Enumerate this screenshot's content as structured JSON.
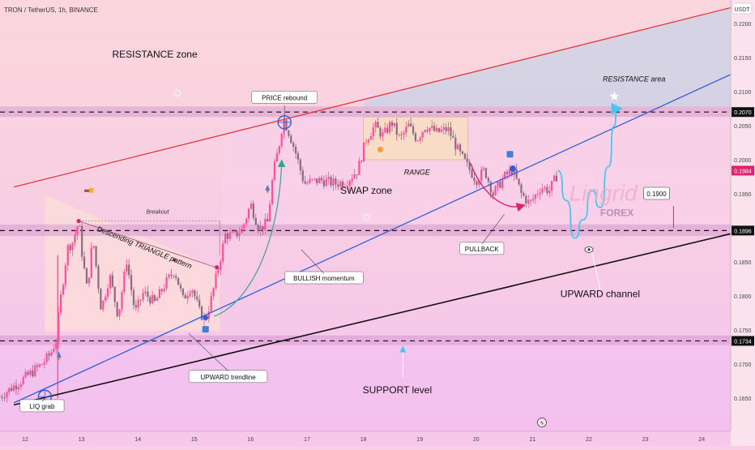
{
  "header": {
    "symbol": "TRON / TetherUS, 1h, BINANCE",
    "currency": "USDT"
  },
  "colors": {
    "background": "#f8cfe4",
    "band": "#d79ad0",
    "bull_candle": "#ff4d9a",
    "bear_candle": "#8a6b84",
    "resistance_line": "#e23a3a",
    "trend_line": "#2f5ed8",
    "support_line": "#111111",
    "projection": "#47c6ee",
    "pullback_arrow": "#e0226f",
    "momentum_arrow": "#3aa38e"
  },
  "chart_data": {
    "type": "candlestick",
    "symbol": "TRON / TetherUS",
    "timeframe": "1h",
    "exchange": "BINANCE",
    "quote": "USDT",
    "x_ticks": [
      "12",
      "13",
      "14",
      "15",
      "16",
      "17",
      "18",
      "19",
      "20",
      "21",
      "22",
      "23",
      "24"
    ],
    "y_ticks": [
      "0.2200",
      "0.2150",
      "0.2100",
      "0.2050",
      "0.2000",
      "0.1950",
      "0.1900",
      "0.1850",
      "0.1800",
      "0.1750",
      "0.1700",
      "0.1650"
    ],
    "xlim": [
      12,
      24.5
    ],
    "ylim": [
      0.1623,
      0.224
    ],
    "price_path": [
      [
        11.55,
        0.1652
      ],
      [
        12.0,
        0.168
      ],
      [
        12.3,
        0.17
      ],
      [
        12.45,
        0.1715
      ],
      [
        12.55,
        0.1735
      ],
      [
        12.62,
        0.179
      ],
      [
        12.75,
        0.187
      ],
      [
        12.85,
        0.188
      ],
      [
        12.95,
        0.191
      ],
      [
        13.0,
        0.1868
      ],
      [
        13.1,
        0.1808
      ],
      [
        13.2,
        0.1885
      ],
      [
        13.35,
        0.178
      ],
      [
        13.5,
        0.183
      ],
      [
        13.65,
        0.177
      ],
      [
        13.8,
        0.1852
      ],
      [
        13.95,
        0.1775
      ],
      [
        14.1,
        0.1805
      ],
      [
        14.3,
        0.179
      ],
      [
        14.5,
        0.182
      ],
      [
        14.65,
        0.1838
      ],
      [
        14.8,
        0.1795
      ],
      [
        14.95,
        0.1815
      ],
      [
        15.1,
        0.1775
      ],
      [
        15.2,
        0.1765
      ],
      [
        15.3,
        0.1795
      ],
      [
        15.45,
        0.185
      ],
      [
        15.55,
        0.189
      ],
      [
        15.7,
        0.1888
      ],
      [
        15.85,
        0.1898
      ],
      [
        16.0,
        0.1935
      ],
      [
        16.15,
        0.1898
      ],
      [
        16.3,
        0.1908
      ],
      [
        16.4,
        0.198
      ],
      [
        16.5,
        0.202
      ],
      [
        16.58,
        0.206
      ],
      [
        16.68,
        0.204
      ],
      [
        16.8,
        0.201
      ],
      [
        16.95,
        0.1965
      ],
      [
        17.1,
        0.1968
      ],
      [
        17.25,
        0.197
      ],
      [
        17.5,
        0.1965
      ],
      [
        17.7,
        0.1968
      ],
      [
        17.9,
        0.1985
      ],
      [
        18.05,
        0.203
      ],
      [
        18.2,
        0.205
      ],
      [
        18.35,
        0.2035
      ],
      [
        18.5,
        0.2055
      ],
      [
        18.65,
        0.203
      ],
      [
        18.8,
        0.205
      ],
      [
        18.95,
        0.203
      ],
      [
        19.1,
        0.205
      ],
      [
        19.3,
        0.204
      ],
      [
        19.5,
        0.2045
      ],
      [
        19.7,
        0.201
      ],
      [
        19.85,
        0.199
      ],
      [
        20.0,
        0.197
      ],
      [
        20.15,
        0.1985
      ],
      [
        20.3,
        0.195
      ],
      [
        20.5,
        0.1975
      ],
      [
        20.65,
        0.1985
      ],
      [
        20.8,
        0.195
      ],
      [
        20.95,
        0.1935
      ],
      [
        21.15,
        0.196
      ],
      [
        21.3,
        0.1955
      ],
      [
        21.45,
        0.198
      ]
    ],
    "projection_path": [
      [
        21.45,
        0.1984
      ],
      [
        21.6,
        0.194
      ],
      [
        21.75,
        0.1885
      ],
      [
        21.9,
        0.1912
      ],
      [
        22.05,
        0.1955
      ],
      [
        22.2,
        0.193
      ],
      [
        22.35,
        0.199
      ],
      [
        22.45,
        0.205
      ],
      [
        22.5,
        0.2075
      ]
    ],
    "horizontal_levels": [
      {
        "value": 0.207,
        "label": "0.2070"
      },
      {
        "value": 0.1896,
        "label": "0.1896"
      },
      {
        "value": 0.1734,
        "label": "0.1734"
      }
    ],
    "current_price": {
      "value": 0.1984,
      "label": "0.1984"
    },
    "target_marker": {
      "value": 0.19,
      "label": "0.1900"
    },
    "zones": [
      {
        "y": [
          0.2063,
          0.2078
        ]
      },
      {
        "y": [
          0.1888,
          0.1905
        ]
      },
      {
        "y": [
          0.1728,
          0.1742
        ]
      }
    ],
    "trend_lines": [
      {
        "name": "resistance",
        "from": [
          11.8,
          0.196
        ],
        "to": [
          24.6,
          0.2225
        ]
      },
      {
        "name": "upward-trendline",
        "from": [
          11.8,
          0.1643
        ],
        "to": [
          25.3,
          0.2155
        ]
      },
      {
        "name": "support",
        "from": [
          11.8,
          0.164
        ],
        "to": [
          24.7,
          0.1895
        ]
      }
    ],
    "annotations": [
      {
        "text": "RESISTANCE zone",
        "style": "plain",
        "x": 14.3,
        "y": 0.215
      },
      {
        "text": "RESISTANCE area",
        "style": "italic",
        "x": 22.8,
        "y": 0.2115
      },
      {
        "text": "PRICE rebound",
        "style": "box",
        "x": 16.6,
        "y": 0.209
      },
      {
        "text": "RANGE",
        "style": "italic",
        "x": 18.95,
        "y": 0.1978
      },
      {
        "text": "SWAP zone",
        "style": "plain",
        "x": 18.05,
        "y": 0.195
      },
      {
        "text": "Breakout",
        "style": "italic-small",
        "x": 14.35,
        "y": 0.1921
      },
      {
        "text": "Descending TRIANGLE pattern",
        "style": "italic-rotated",
        "x": 14.1,
        "y": 0.1868
      },
      {
        "text": "PULLBACK",
        "style": "box",
        "x": 20.1,
        "y": 0.1868
      },
      {
        "text": "BULLISH momentum",
        "style": "box",
        "x": 17.3,
        "y": 0.1825
      },
      {
        "text": "UPWARD channel",
        "style": "plain",
        "x": 22.2,
        "y": 0.1798
      },
      {
        "text": "UPWARD trendline",
        "style": "box",
        "x": 15.6,
        "y": 0.168
      },
      {
        "text": "SUPPORT level",
        "style": "plain",
        "x": 18.6,
        "y": 0.1657
      },
      {
        "text": "LIQ grab",
        "style": "box",
        "x": 12.3,
        "y": 0.1637
      }
    ],
    "watermark": {
      "line1": "Lingrid",
      "line2": "FOREX"
    }
  }
}
